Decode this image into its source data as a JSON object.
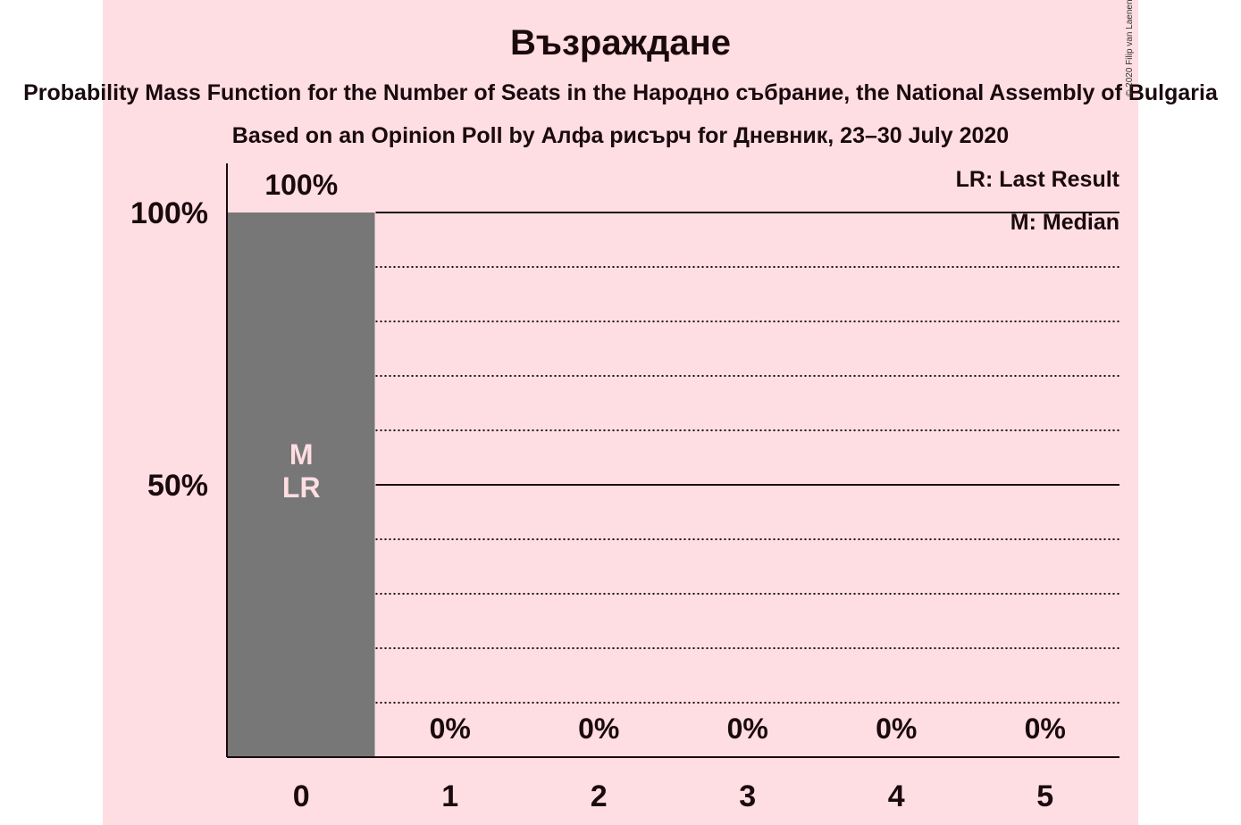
{
  "title": "Възраждане",
  "subtitle": "Probability Mass Function for the Number of Seats in the Народно събрание, the National Assembly of Bulgaria",
  "poll_line": "Based on an Opinion Poll by Алфа рисърч for Дневник, 23–30 July 2020",
  "copyright": "© 2020 Filip van Laenen",
  "legend": {
    "last_result": "LR: Last Result",
    "median": "M: Median"
  },
  "colors": {
    "panel_background": "#ffdee3",
    "bar": "#777777",
    "text": "#1a0a0e"
  },
  "chart_data": {
    "type": "bar",
    "categories": [
      "0",
      "1",
      "2",
      "3",
      "4",
      "5"
    ],
    "values": [
      100,
      0,
      0,
      0,
      0,
      0
    ],
    "value_labels": [
      "100%",
      "0%",
      "0%",
      "0%",
      "0%",
      "0%"
    ],
    "bar_annotations": {
      "0": [
        "M",
        "LR"
      ]
    },
    "ylim": [
      0,
      100
    ],
    "yticks": [
      {
        "value": 50,
        "label": "50%"
      },
      {
        "value": 100,
        "label": "100%"
      }
    ],
    "minor_gridlines": [
      10,
      20,
      30,
      40,
      60,
      70,
      80,
      90
    ],
    "grid": true,
    "legend_position": "top-right"
  }
}
